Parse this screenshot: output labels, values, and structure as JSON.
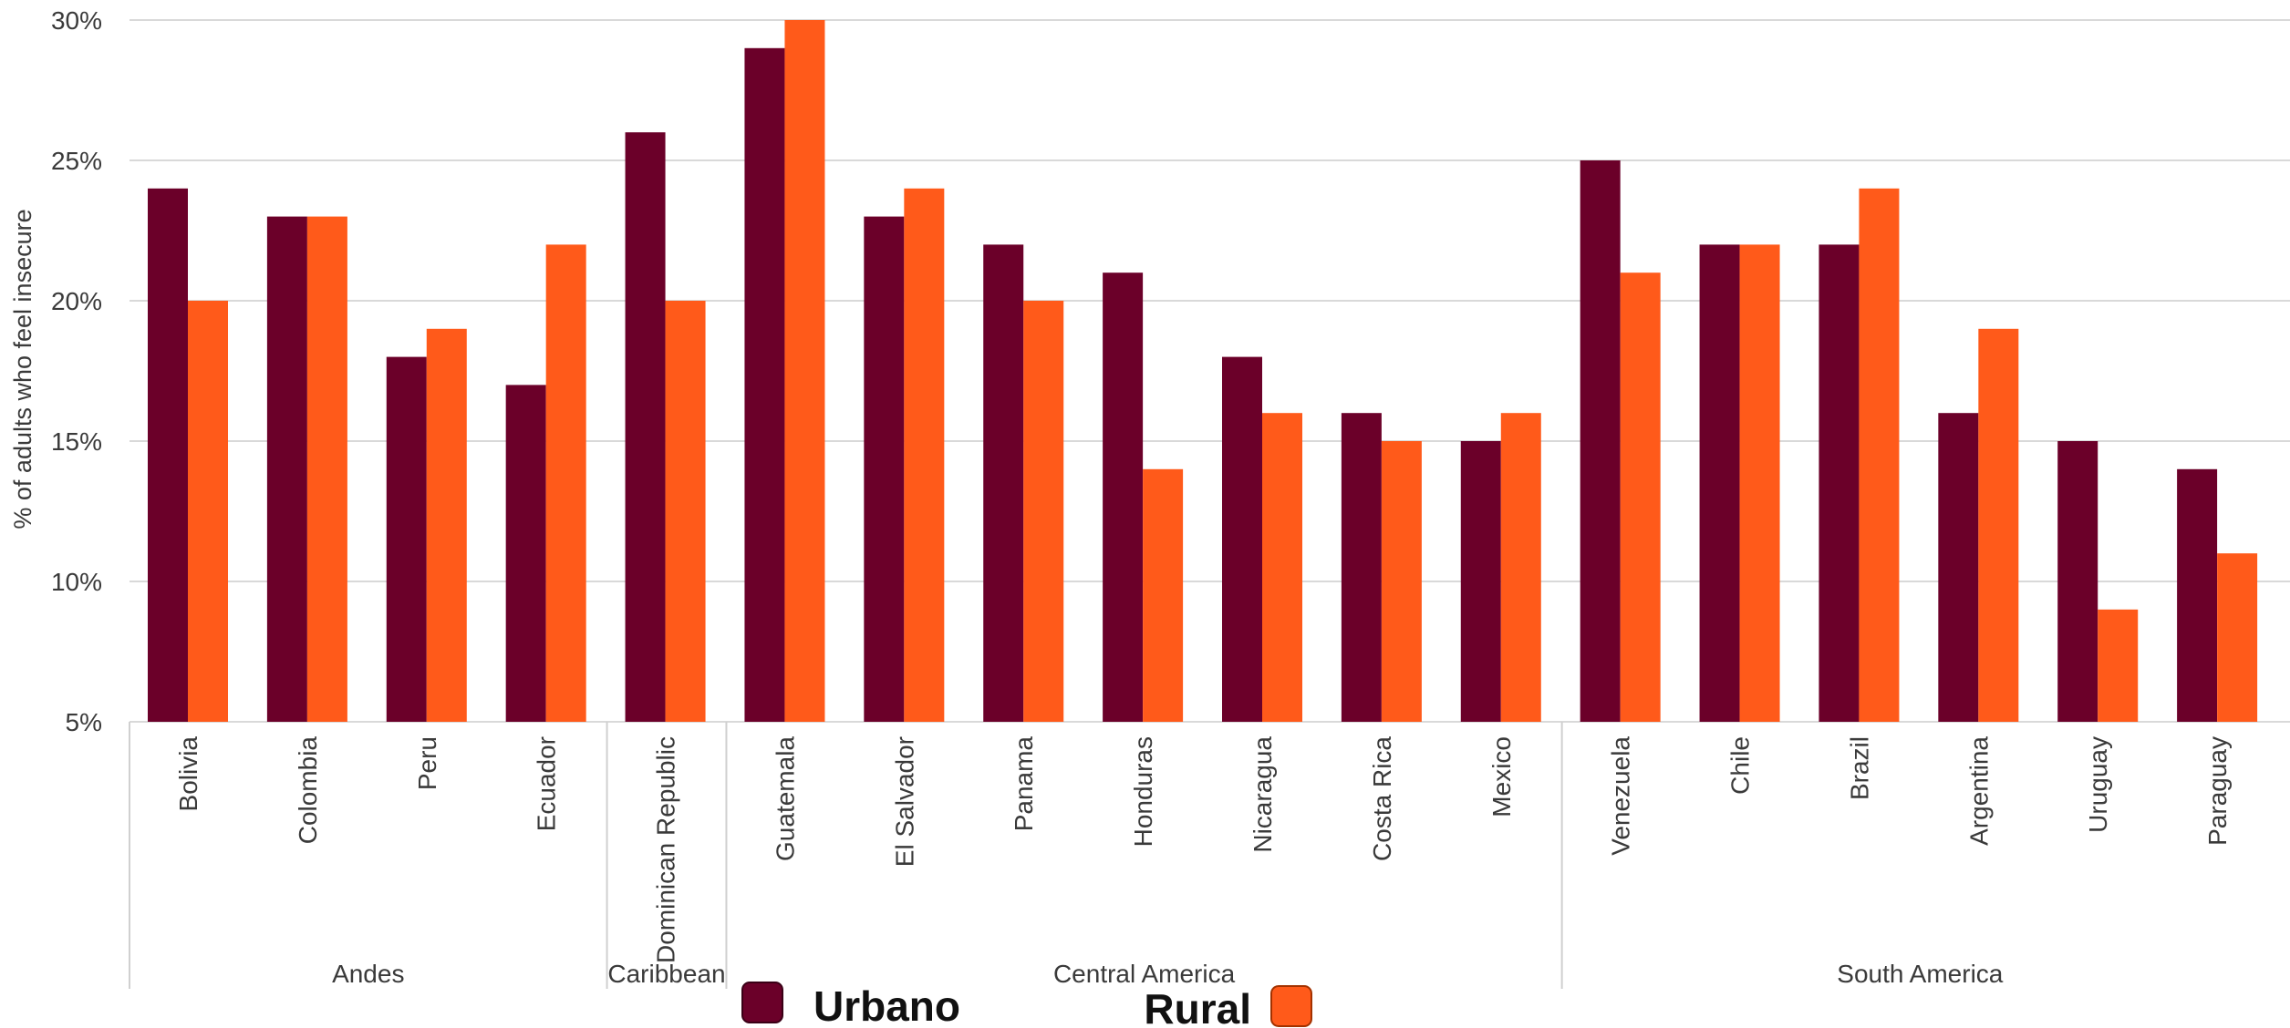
{
  "chart_data": {
    "type": "bar",
    "ylabel": "% of adults who feel insecure",
    "ylim": [
      5,
      30
    ],
    "yticks": [
      "5%",
      "10%",
      "15%",
      "20%",
      "25%",
      "30%"
    ],
    "grid": true,
    "categories": [
      "Bolivia",
      "Colombia",
      "Peru",
      "Ecuador",
      "Dominican Republic",
      "Guatemala",
      "El Salvador",
      "Panama",
      "Honduras",
      "Nicaragua",
      "Costa Rica",
      "Mexico",
      "Venezuela",
      "Chile",
      "Brazil",
      "Argentina",
      "Uruguay",
      "Paraguay"
    ],
    "groups": [
      {
        "label": "Andes",
        "start": 0,
        "end": 3
      },
      {
        "label": "Caribbean",
        "start": 4,
        "end": 4
      },
      {
        "label": "Central America",
        "start": 5,
        "end": 11
      },
      {
        "label": "South America",
        "start": 12,
        "end": 17
      }
    ],
    "series": [
      {
        "name": "Urbano",
        "color": "#6b0029",
        "values": [
          24,
          23,
          18,
          17,
          26,
          29,
          23,
          22,
          21,
          18,
          16,
          15,
          25,
          22,
          22,
          16,
          15,
          14
        ]
      },
      {
        "name": "Rural",
        "color": "#ff5a1a",
        "values": [
          20,
          23,
          19,
          22,
          20,
          30,
          24,
          20,
          14,
          16,
          15,
          16,
          21,
          22,
          24,
          19,
          9,
          11
        ]
      }
    ],
    "legend_position": "bottom-center"
  }
}
